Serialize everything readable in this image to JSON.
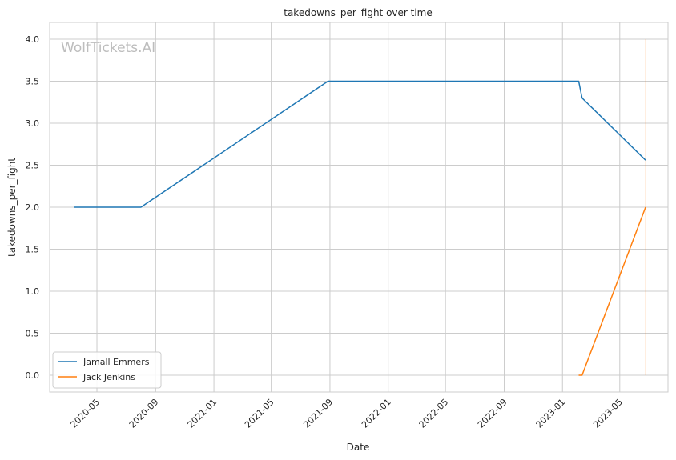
{
  "watermark": "WolfTickets.AI",
  "colors": {
    "background": "#ffffff",
    "grid": "#cccccc",
    "frame": "#cccccc"
  },
  "chart_data": {
    "type": "line",
    "title": "takedowns_per_fight over time",
    "xlabel": "Date",
    "ylabel": "takedowns_per_fight",
    "x_is_date": true,
    "xlim": [
      "2020-01-23",
      "2023-08-10"
    ],
    "ylim": [
      -0.2,
      4.2
    ],
    "xticks": [
      "2020-05-01",
      "2020-09-01",
      "2021-01-01",
      "2021-05-01",
      "2021-09-01",
      "2022-01-01",
      "2022-05-01",
      "2022-09-01",
      "2023-01-01",
      "2023-05-01"
    ],
    "xtick_labels": [
      "2020-05",
      "2020-09",
      "2021-01",
      "2021-05",
      "2021-09",
      "2022-01",
      "2022-05",
      "2022-09",
      "2023-01",
      "2023-05"
    ],
    "yticks": [
      0.0,
      0.5,
      1.0,
      1.5,
      2.0,
      2.5,
      3.0,
      3.5,
      4.0
    ],
    "ytick_labels": [
      "0.0",
      "0.5",
      "1.0",
      "1.5",
      "2.0",
      "2.5",
      "3.0",
      "3.5",
      "4.0"
    ],
    "grid": true,
    "legend_position": "bottom-left",
    "series": [
      {
        "name": "Jamall Emmers",
        "color": "#1f77b4",
        "x": [
          "2020-03-14",
          "2020-08-01",
          "2021-08-28",
          "2023-02-04",
          "2023-02-11",
          "2023-06-24"
        ],
        "y": [
          2.0,
          2.0,
          3.5,
          3.5,
          3.3,
          2.56
        ]
      },
      {
        "name": "Jack Jenkins",
        "color": "#ff7f0e",
        "x": [
          "2023-02-04",
          "2023-02-11",
          "2023-06-24"
        ],
        "y": [
          0.0,
          0.0,
          2.0
        ]
      }
    ],
    "vertical_marker": {
      "x": "2023-06-24",
      "y_range": [
        0.0,
        4.0
      ],
      "color": "#ff7f0e"
    }
  }
}
